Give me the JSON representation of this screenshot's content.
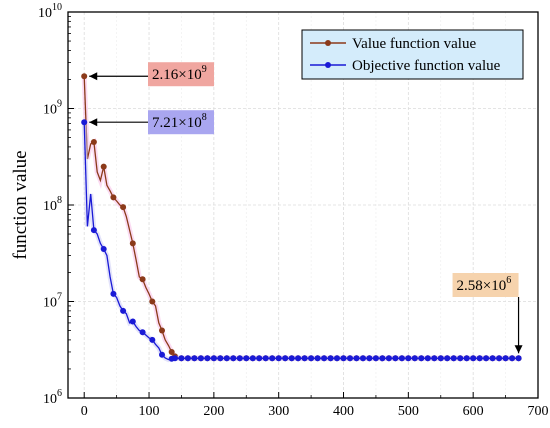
{
  "chart_data": {
    "type": "line",
    "title": "",
    "xlabel": "",
    "ylabel": "function value",
    "xlim": [
      -25,
      700
    ],
    "ylim_exponents": [
      6,
      10
    ],
    "yscale": "log",
    "grid": true,
    "legend_position": "top-right",
    "x_ticks": [
      "0",
      "100",
      "200",
      "300",
      "400",
      "500",
      "600",
      "700"
    ],
    "y_ticks": [
      {
        "base": "10",
        "exp": "6"
      },
      {
        "base": "10",
        "exp": "7"
      },
      {
        "base": "10",
        "exp": "8"
      },
      {
        "base": "10",
        "exp": "9"
      },
      {
        "base": "10",
        "exp": "10"
      }
    ],
    "series": [
      {
        "name": "Value function value",
        "color": "#8b3a1a",
        "marker_color": "#8b3a1a",
        "x": [
          0,
          5,
          10,
          15,
          20,
          25,
          30,
          35,
          40,
          45,
          50,
          55,
          60,
          65,
          70,
          75,
          80,
          85,
          90,
          95,
          100,
          105,
          110,
          115,
          120,
          125,
          130,
          135,
          140,
          145,
          150,
          160,
          170,
          180,
          190,
          200,
          210,
          220,
          230,
          240,
          250,
          260,
          270,
          280,
          290,
          300,
          310,
          320,
          330,
          340,
          350,
          360,
          370,
          380,
          390,
          400,
          410,
          420,
          430,
          440,
          450,
          460,
          470,
          480,
          490,
          500,
          510,
          520,
          530,
          540,
          550,
          560,
          570,
          580,
          590,
          600,
          610,
          620,
          630,
          640,
          650,
          660,
          670
        ],
        "y": [
          2160000000,
          300000000,
          430000000,
          450000000,
          220000000,
          180000000,
          250000000,
          160000000,
          140000000,
          120000000,
          110000000,
          100000000,
          95000000,
          76000000,
          55000000,
          40000000,
          27000000,
          18000000,
          17000000,
          14000000,
          12000000,
          10000000,
          9000000,
          6000000,
          5000000,
          4000000,
          3500000,
          3000000,
          2700000,
          2600000,
          2580000,
          2580000,
          2580000,
          2580000,
          2580000,
          2580000,
          2580000,
          2580000,
          2580000,
          2580000,
          2580000,
          2580000,
          2580000,
          2580000,
          2580000,
          2580000,
          2580000,
          2580000,
          2580000,
          2580000,
          2580000,
          2580000,
          2580000,
          2580000,
          2580000,
          2580000,
          2580000,
          2580000,
          2580000,
          2580000,
          2580000,
          2580000,
          2580000,
          2580000,
          2580000,
          2580000,
          2580000,
          2580000,
          2580000,
          2580000,
          2580000,
          2580000,
          2580000,
          2580000,
          2580000,
          2580000,
          2580000,
          2580000,
          2580000,
          2580000,
          2580000,
          2580000,
          2580000
        ]
      },
      {
        "name": "Objective function value",
        "color": "#1a1ad6",
        "marker_color": "#1a1ad6",
        "x": [
          0,
          5,
          10,
          15,
          20,
          25,
          30,
          35,
          40,
          45,
          50,
          55,
          60,
          65,
          70,
          75,
          80,
          85,
          90,
          95,
          100,
          105,
          110,
          115,
          120,
          125,
          130,
          135,
          140,
          145,
          150,
          160,
          170,
          180,
          190,
          200,
          210,
          220,
          230,
          240,
          250,
          260,
          270,
          280,
          290,
          300,
          310,
          320,
          330,
          340,
          350,
          360,
          370,
          380,
          390,
          400,
          410,
          420,
          430,
          440,
          450,
          460,
          470,
          480,
          490,
          500,
          510,
          520,
          530,
          540,
          550,
          560,
          570,
          580,
          590,
          600,
          610,
          620,
          630,
          640,
          650,
          660,
          670
        ],
        "y": [
          721000000,
          60000000,
          130000000,
          55000000,
          50000000,
          40000000,
          35000000,
          30000000,
          18000000,
          12000000,
          11000000,
          9000000,
          8000000,
          7500000,
          6000000,
          6200000,
          5500000,
          5000000,
          4800000,
          4500000,
          4200000,
          4000000,
          3600000,
          3300000,
          2800000,
          2600000,
          2500000,
          2550000,
          2580000,
          2580000,
          2580000,
          2580000,
          2580000,
          2580000,
          2580000,
          2580000,
          2580000,
          2580000,
          2580000,
          2580000,
          2580000,
          2580000,
          2580000,
          2580000,
          2580000,
          2580000,
          2580000,
          2580000,
          2580000,
          2580000,
          2580000,
          2580000,
          2580000,
          2580000,
          2580000,
          2580000,
          2580000,
          2580000,
          2580000,
          2580000,
          2580000,
          2580000,
          2580000,
          2580000,
          2580000,
          2580000,
          2580000,
          2580000,
          2580000,
          2580000,
          2580000,
          2580000,
          2580000,
          2580000,
          2580000,
          2580000,
          2580000,
          2580000,
          2580000,
          2580000,
          2580000,
          2580000,
          2580000
        ]
      }
    ],
    "annotations": [
      {
        "base": "2.16×10",
        "exp": "9",
        "x": 0,
        "y": 2160000000,
        "bg": "#f0a6a0"
      },
      {
        "base": "7.21×10",
        "exp": "8",
        "x": 0,
        "y": 721000000,
        "bg": "#a9a6f0"
      },
      {
        "base": "2.58×10",
        "exp": "6",
        "x": 670,
        "y": 2580000,
        "bg": "#f6d3ad"
      }
    ]
  }
}
